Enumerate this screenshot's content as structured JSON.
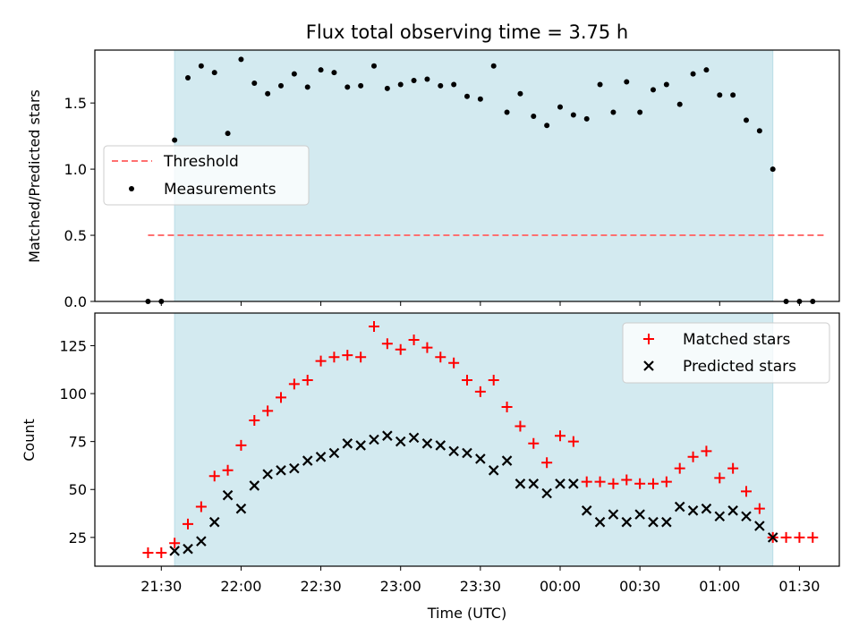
{
  "figure": {
    "title": "Flux total observing time = 3.75 h",
    "xlabel": "Time (UTC)",
    "shade_color": "#d3eaf0",
    "background": "#ffffff"
  },
  "chart_data": [
    {
      "type": "scatter",
      "panel": "top",
      "title": "Flux total observing time = 3.75 h",
      "xlabel": "",
      "ylabel": "Matched/Predicted stars",
      "xlim": [
        "21:05",
        "01:45"
      ],
      "ylim": [
        0,
        1.9
      ],
      "yticks": [
        0.0,
        0.5,
        1.0,
        1.5
      ],
      "ytick_labels": [
        "0.0",
        "0.5",
        "1.0",
        "1.5"
      ],
      "grid": false,
      "legend_position": "center-left",
      "shaded_interval": [
        "21:35",
        "01:20"
      ],
      "threshold": {
        "name": "Threshold",
        "value": 0.5,
        "x": [
          "21:25",
          "01:40"
        ],
        "color": "#ff7070",
        "style": "dashed"
      },
      "series": [
        {
          "name": "Measurements",
          "color": "#000000",
          "marker": "dot",
          "x": [
            "21:25",
            "21:30",
            "21:35",
            "21:40",
            "21:45",
            "21:50",
            "21:55",
            "22:00",
            "22:05",
            "22:10",
            "22:15",
            "22:20",
            "22:25",
            "22:30",
            "22:35",
            "22:40",
            "22:45",
            "22:50",
            "22:55",
            "23:00",
            "23:05",
            "23:10",
            "23:15",
            "23:20",
            "23:25",
            "23:30",
            "23:35",
            "23:40",
            "23:45",
            "23:50",
            "23:55",
            "00:00",
            "00:05",
            "00:10",
            "00:15",
            "00:20",
            "00:25",
            "00:30",
            "00:35",
            "00:40",
            "00:45",
            "00:50",
            "00:55",
            "01:00",
            "01:05",
            "01:10",
            "01:15",
            "01:20",
            "01:25",
            "01:30",
            "01:35"
          ],
          "y": [
            0.0,
            0.0,
            1.22,
            1.69,
            1.78,
            1.73,
            1.27,
            1.83,
            1.65,
            1.57,
            1.63,
            1.72,
            1.62,
            1.75,
            1.73,
            1.62,
            1.63,
            1.78,
            1.61,
            1.64,
            1.67,
            1.68,
            1.63,
            1.64,
            1.55,
            1.53,
            1.78,
            1.43,
            1.57,
            1.4,
            1.33,
            1.47,
            1.41,
            1.38,
            1.64,
            1.43,
            1.66,
            1.43,
            1.6,
            1.64,
            1.49,
            1.72,
            1.75,
            1.56,
            1.56,
            1.37,
            1.29,
            1.0,
            0.0,
            0.0,
            0.0
          ]
        }
      ]
    },
    {
      "type": "scatter",
      "panel": "bottom",
      "xlabel": "Time (UTC)",
      "ylabel": "Count",
      "xlim": [
        "21:05",
        "01:45"
      ],
      "ylim": [
        10,
        142
      ],
      "yticks": [
        25,
        50,
        75,
        100,
        125
      ],
      "ytick_labels": [
        "25",
        "50",
        "75",
        "100",
        "125"
      ],
      "xticks": [
        "21:30",
        "22:00",
        "22:30",
        "23:00",
        "23:30",
        "00:00",
        "00:30",
        "01:00",
        "01:30"
      ],
      "grid": false,
      "legend_position": "top-right",
      "shaded_interval": [
        "21:35",
        "01:20"
      ],
      "series": [
        {
          "name": "Matched stars",
          "color": "#ff0000",
          "marker": "plus",
          "x": [
            "21:25",
            "21:30",
            "21:35",
            "21:40",
            "21:45",
            "21:50",
            "21:55",
            "22:00",
            "22:05",
            "22:10",
            "22:15",
            "22:20",
            "22:25",
            "22:30",
            "22:35",
            "22:40",
            "22:45",
            "22:50",
            "22:55",
            "23:00",
            "23:05",
            "23:10",
            "23:15",
            "23:20",
            "23:25",
            "23:30",
            "23:35",
            "23:40",
            "23:45",
            "23:50",
            "23:55",
            "00:00",
            "00:05",
            "00:10",
            "00:15",
            "00:20",
            "00:25",
            "00:30",
            "00:35",
            "00:40",
            "00:45",
            "00:50",
            "00:55",
            "01:00",
            "01:05",
            "01:10",
            "01:15",
            "01:20",
            "01:25",
            "01:30",
            "01:35"
          ],
          "y": [
            17,
            17,
            22,
            32,
            41,
            57,
            60,
            73,
            86,
            91,
            98,
            105,
            107,
            117,
            119,
            120,
            119,
            135,
            126,
            123,
            128,
            124,
            119,
            116,
            107,
            101,
            107,
            93,
            83,
            74,
            64,
            78,
            75,
            54,
            54,
            53,
            55,
            53,
            53,
            54,
            61,
            67,
            70,
            56,
            61,
            49,
            40,
            25,
            25,
            25,
            25
          ]
        },
        {
          "name": "Predicted stars",
          "color": "#000000",
          "marker": "x",
          "x": [
            "21:35",
            "21:40",
            "21:45",
            "21:50",
            "21:55",
            "22:00",
            "22:05",
            "22:10",
            "22:15",
            "22:20",
            "22:25",
            "22:30",
            "22:35",
            "22:40",
            "22:45",
            "22:50",
            "22:55",
            "23:00",
            "23:05",
            "23:10",
            "23:15",
            "23:20",
            "23:25",
            "23:30",
            "23:35",
            "23:40",
            "23:45",
            "23:50",
            "23:55",
            "00:00",
            "00:05",
            "00:10",
            "00:15",
            "00:20",
            "00:25",
            "00:30",
            "00:35",
            "00:40",
            "00:45",
            "00:50",
            "00:55",
            "01:00",
            "01:05",
            "01:10",
            "01:15",
            "01:20"
          ],
          "y": [
            18,
            19,
            23,
            33,
            47,
            40,
            52,
            58,
            60,
            61,
            65,
            67,
            69,
            74,
            73,
            76,
            78,
            75,
            77,
            74,
            73,
            70,
            69,
            66,
            60,
            65,
            53,
            53,
            48,
            53,
            53,
            39,
            33,
            37,
            33,
            37,
            33,
            33,
            41,
            39,
            40,
            36,
            39,
            36,
            31,
            25
          ]
        }
      ]
    }
  ]
}
